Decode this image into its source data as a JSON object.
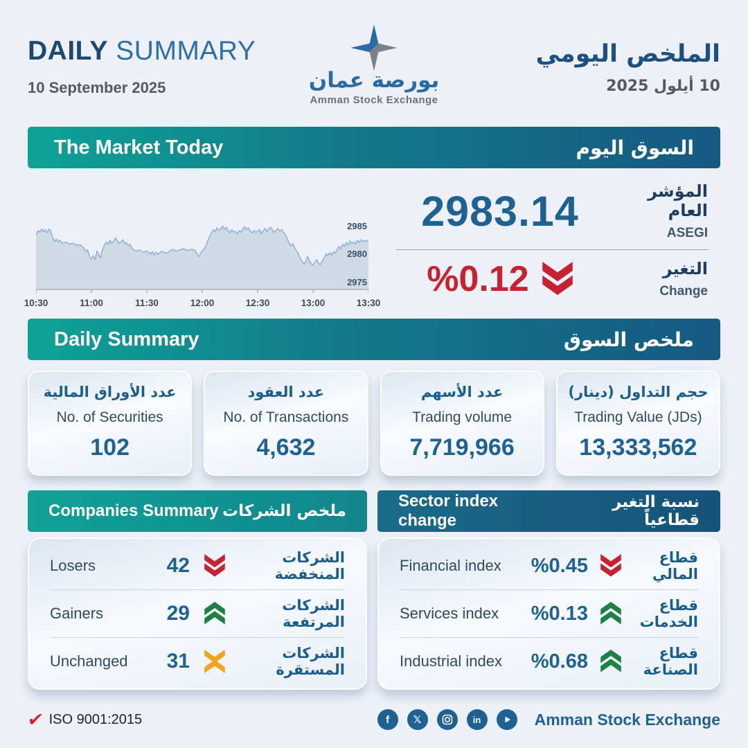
{
  "header": {
    "title_en_bold": "DAILY",
    "title_en_light": "SUMMARY",
    "date_en": "10 September 2025",
    "title_ar": "الملخص اليومي",
    "date_ar": "10 أيلول 2025",
    "logo": {
      "name_ar": "بورصة عمان",
      "name_en": "Amman Stock Exchange"
    }
  },
  "market_today": {
    "banner_en": "The Market Today",
    "banner_ar": "السوق اليوم",
    "index_value": "2983.14",
    "index_label_ar": "المؤشر العام",
    "index_label_en": "ASEGI",
    "change_value": "%0.12",
    "change_direction": "down",
    "change_color": "#c62232",
    "change_label_ar": "التغير",
    "change_label_en": "Change"
  },
  "chart_data": {
    "type": "area",
    "title": "ASEGI intraday index",
    "x_ticks": [
      "10:30",
      "11:00",
      "11:30",
      "12:00",
      "12:30",
      "13:00",
      "13:30"
    ],
    "y_ticks": [
      2985,
      2980,
      2975
    ],
    "ylim": [
      2973.8,
      2988
    ],
    "x_max": 180,
    "grid": false,
    "legend": "none",
    "line_color": "#8fb4d6",
    "fill_color": "#cdd8e3",
    "axis_color": "#aab3bd",
    "series": [
      {
        "name": "ASEGI",
        "points": [
          [
            0,
            2983.4
          ],
          [
            1,
            2984.2
          ],
          [
            2,
            2983.9
          ],
          [
            3,
            2984.5
          ],
          [
            4,
            2984.0
          ],
          [
            5,
            2984.4
          ],
          [
            6,
            2983.8
          ],
          [
            7,
            2984.5
          ],
          [
            8,
            2984.1
          ],
          [
            9,
            2983.0
          ],
          [
            10,
            2982.3
          ],
          [
            11,
            2982.7
          ],
          [
            12,
            2982.2
          ],
          [
            13,
            2982.5
          ],
          [
            14,
            2982.0
          ],
          [
            16,
            2982.2
          ],
          [
            18,
            2981.8
          ],
          [
            20,
            2982.0
          ],
          [
            22,
            2981.6
          ],
          [
            24,
            2981.7
          ],
          [
            26,
            2981.1
          ],
          [
            27,
            2980.5
          ],
          [
            28,
            2980.8
          ],
          [
            29,
            2979.6
          ],
          [
            30,
            2979.2
          ],
          [
            31,
            2979.8
          ],
          [
            32,
            2979.1
          ],
          [
            33,
            2980.6
          ],
          [
            34,
            2979.9
          ],
          [
            35,
            2979.4
          ],
          [
            36,
            2980.9
          ],
          [
            37,
            2981.6
          ],
          [
            38,
            2982.2
          ],
          [
            39,
            2981.8
          ],
          [
            40,
            2982.5
          ],
          [
            41,
            2982.0
          ],
          [
            42,
            2982.3
          ],
          [
            43,
            2982.9
          ],
          [
            44,
            2982.4
          ],
          [
            45,
            2981.9
          ],
          [
            46,
            2982.2
          ],
          [
            47,
            2982.6
          ],
          [
            48,
            2981.9
          ],
          [
            49,
            2982.1
          ],
          [
            50,
            2981.5
          ],
          [
            51,
            2981.8
          ],
          [
            52,
            2981.0
          ],
          [
            54,
            2980.6
          ],
          [
            56,
            2980.8
          ],
          [
            58,
            2980.4
          ],
          [
            60,
            2980.6
          ],
          [
            62,
            2980.1
          ],
          [
            63,
            2980.5
          ],
          [
            64,
            2979.9
          ],
          [
            65,
            2980.4
          ],
          [
            66,
            2980.0
          ],
          [
            68,
            2980.6
          ],
          [
            70,
            2980.2
          ],
          [
            72,
            2980.5
          ],
          [
            74,
            2980.9
          ],
          [
            76,
            2980.6
          ],
          [
            78,
            2980.8
          ],
          [
            80,
            2981.0
          ],
          [
            82,
            2980.7
          ],
          [
            84,
            2980.9
          ],
          [
            86,
            2980.8
          ],
          [
            87,
            2980.2
          ],
          [
            88,
            2979.6
          ],
          [
            89,
            2980.1
          ],
          [
            90,
            2980.7
          ],
          [
            91,
            2980.9
          ],
          [
            92,
            2981.5
          ],
          [
            93,
            2982.4
          ],
          [
            94,
            2983.2
          ],
          [
            95,
            2983.8
          ],
          [
            96,
            2984.4
          ],
          [
            97,
            2984.0
          ],
          [
            98,
            2984.7
          ],
          [
            99,
            2984.2
          ],
          [
            100,
            2984.5
          ],
          [
            101,
            2985.0
          ],
          [
            102,
            2984.4
          ],
          [
            103,
            2984.8
          ],
          [
            104,
            2984.2
          ],
          [
            105,
            2983.8
          ],
          [
            106,
            2984.4
          ],
          [
            107,
            2983.9
          ],
          [
            108,
            2984.1
          ],
          [
            109,
            2983.6
          ],
          [
            110,
            2984.2
          ],
          [
            111,
            2983.9
          ],
          [
            112,
            2984.5
          ],
          [
            113,
            2984.9
          ],
          [
            114,
            2984.4
          ],
          [
            115,
            2984.7
          ],
          [
            116,
            2984.1
          ],
          [
            117,
            2983.8
          ],
          [
            118,
            2984.2
          ],
          [
            119,
            2983.9
          ],
          [
            120,
            2984.1
          ],
          [
            121,
            2984.4
          ],
          [
            122,
            2983.6
          ],
          [
            123,
            2984.2
          ],
          [
            124,
            2984.6
          ],
          [
            125,
            2984.0
          ],
          [
            126,
            2984.5
          ],
          [
            127,
            2984.8
          ],
          [
            128,
            2984.3
          ],
          [
            129,
            2983.9
          ],
          [
            130,
            2984.3
          ],
          [
            131,
            2984.6
          ],
          [
            132,
            2984.1
          ],
          [
            133,
            2984.4
          ],
          [
            134,
            2983.9
          ],
          [
            135,
            2983.5
          ],
          [
            136,
            2982.8
          ],
          [
            137,
            2982.1
          ],
          [
            138,
            2981.5
          ],
          [
            139,
            2981.9
          ],
          [
            140,
            2981.2
          ],
          [
            141,
            2980.7
          ],
          [
            142,
            2980.1
          ],
          [
            143,
            2979.4
          ],
          [
            144,
            2978.8
          ],
          [
            145,
            2978.3
          ],
          [
            146,
            2978.7
          ],
          [
            147,
            2979.6
          ],
          [
            148,
            2978.9
          ],
          [
            149,
            2978.3
          ],
          [
            150,
            2978.1
          ],
          [
            151,
            2978.6
          ],
          [
            152,
            2979.1
          ],
          [
            153,
            2978.4
          ],
          [
            154,
            2978.2
          ],
          [
            155,
            2978.8
          ],
          [
            156,
            2979.4
          ],
          [
            157,
            2980.1
          ],
          [
            158,
            2979.8
          ],
          [
            159,
            2980.3
          ],
          [
            160,
            2979.9
          ],
          [
            161,
            2980.5
          ],
          [
            162,
            2980.2
          ],
          [
            163,
            2980.8
          ],
          [
            164,
            2981.4
          ],
          [
            165,
            2981.0
          ],
          [
            166,
            2981.8
          ],
          [
            167,
            2981.4
          ],
          [
            168,
            2982.1
          ],
          [
            169,
            2981.7
          ],
          [
            170,
            2982.4
          ],
          [
            171,
            2981.9
          ],
          [
            172,
            2982.2
          ],
          [
            173,
            2981.8
          ],
          [
            174,
            2982.5
          ],
          [
            175,
            2982.1
          ],
          [
            176,
            2982.6
          ],
          [
            177,
            2982.2
          ],
          [
            178,
            2982.5
          ],
          [
            179,
            2982.3
          ],
          [
            180,
            2982.5
          ]
        ]
      }
    ]
  },
  "daily_summary": {
    "banner_en": "Daily Summary",
    "banner_ar": "ملخص السوق",
    "cards": [
      {
        "label_ar": "عدد الأوراق المالية",
        "label_en": "No. of Securities",
        "value": "102"
      },
      {
        "label_ar": "عدد العقود",
        "label_en": "No. of Transactions",
        "value": "4,632"
      },
      {
        "label_ar": "عدد الأسهم",
        "label_en": "Trading volume",
        "value": "7,719,966"
      },
      {
        "label_ar": "حجم التداول (دينار)",
        "label_en": "Trading Value (JDs)",
        "value": "13,333,562"
      }
    ]
  },
  "companies_summary": {
    "banner_en": "Companies Summary",
    "banner_ar": "ملخص الشركات",
    "rows": [
      {
        "label_en": "Losers",
        "value": "42",
        "icon": "double-chevron-down",
        "color": "#c62232",
        "label_ar": "الشركات المنخفضة"
      },
      {
        "label_en": "Gainers",
        "value": "29",
        "icon": "double-chevron-up",
        "color": "#1d8044",
        "label_ar": "الشركات المرتفعة"
      },
      {
        "label_en": "Unchanged",
        "value": "31",
        "icon": "chevrons-converge",
        "color": "#f0a51f",
        "label_ar": "الشركات المستقرة"
      }
    ]
  },
  "sector_index": {
    "banner_en": "Sector index change",
    "banner_ar": "نسبة التغير قطاعياً",
    "rows": [
      {
        "label_en": "Financial index",
        "value": "%0.45",
        "icon": "double-chevron-down",
        "color": "#c62232",
        "label_ar": "قطاع المالي"
      },
      {
        "label_en": "Services index",
        "value": "%0.13",
        "icon": "double-chevron-up",
        "color": "#1d8044",
        "label_ar": "قطاع الخدمات"
      },
      {
        "label_en": "Industrial index",
        "value": "%0.68",
        "icon": "double-chevron-up",
        "color": "#1d8044",
        "label_ar": "قطاع الصناعة"
      }
    ]
  },
  "footer": {
    "iso": "ISO 9001:2015",
    "brand": "Amman Stock Exchange",
    "social": [
      "facebook",
      "x-twitter",
      "instagram",
      "linkedin",
      "youtube"
    ]
  },
  "colors": {
    "background": "#edf1f7",
    "primary_blue": "#1d6293",
    "navy": "#1c3e5e",
    "teal": "#0da396",
    "banner_blue": "#155981",
    "negative_red": "#c62232",
    "positive_green": "#1d8044",
    "neutral_amber": "#f0a51f"
  }
}
